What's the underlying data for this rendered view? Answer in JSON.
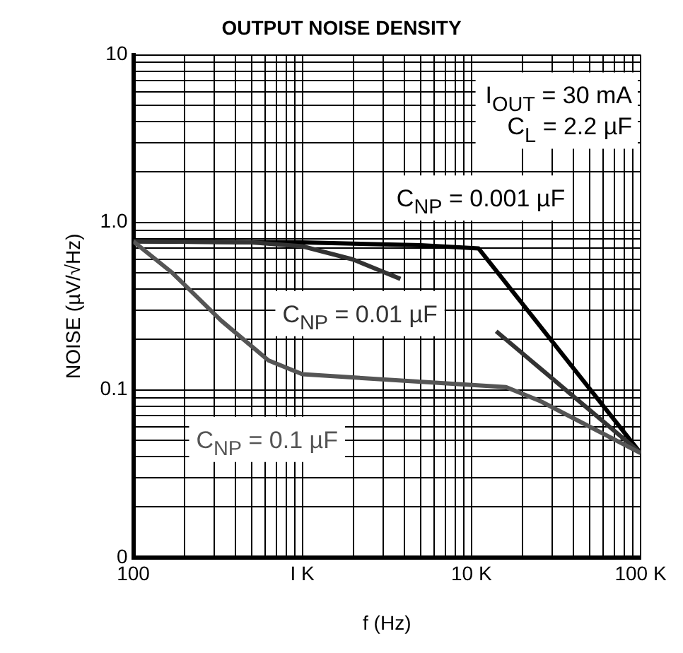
{
  "chart_data": {
    "type": "line",
    "title": "OUTPUT NOISE DENSITY",
    "xlabel": "f (Hz)",
    "ylabel": "NOISE (µV/√Hz)",
    "log": "xy",
    "grid": true,
    "legend": false,
    "marker": "none",
    "line_style": "solid",
    "xlim": [
      100,
      100000
    ],
    "xticks": [
      100,
      {
        "value": 1000,
        "label": "I K"
      },
      {
        "value": 10000,
        "label": "10 K"
      },
      {
        "value": 100000,
        "label": "100 K"
      }
    ],
    "ylim": [
      0.01,
      10
    ],
    "yticks": [
      {
        "value": 0.01,
        "label": "0"
      },
      0.1,
      {
        "value": 1,
        "label": "1.0"
      },
      10
    ],
    "annotations": [
      "I$_{OUT}$ = 30 mA",
      "C$_{L}$ = 2.2 µF"
    ],
    "series": [
      {
        "name": "C$_{NP}$ = 0.001 µF",
        "color": "#000000",
        "x": [
          100,
          1000,
          5000,
          11000,
          100000
        ],
        "values": [
          0.77,
          0.76,
          0.73,
          0.7,
          0.042
        ]
      },
      {
        "name": "C$_{NP}$ = 0.01 µF",
        "color": "#333333",
        "x": [
          100,
          500,
          1000,
          2000,
          3800,
          7000,
          14000,
          100000
        ],
        "values": [
          0.77,
          0.76,
          0.72,
          0.6,
          0.46,
          null,
          0.224,
          0.042
        ]
      },
      {
        "name": "C$_{NP}$ = 0.1 µF",
        "color": "#555555",
        "x": [
          100,
          170,
          330,
          630,
          1000,
          16000,
          26000,
          100000
        ],
        "values": [
          0.77,
          0.5,
          0.26,
          0.15,
          0.124,
          0.104,
          0.085,
          0.042
        ]
      }
    ]
  }
}
